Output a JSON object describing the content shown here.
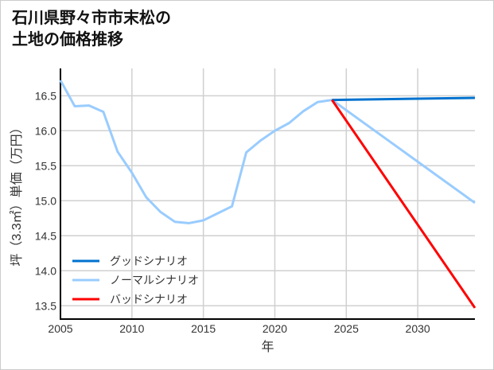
{
  "chart_data": {
    "type": "line",
    "title_lines": [
      "石川県野々市市末松の",
      "土地の価格推移"
    ],
    "xlabel": "年",
    "ylabel": "坪（3.3㎡）単価（万円）",
    "xlim": [
      2005,
      2034
    ],
    "ylim": [
      13.31,
      16.89
    ],
    "xticks": [
      2005,
      2010,
      2015,
      2020,
      2025,
      2030
    ],
    "yticks": [
      13.5,
      14.0,
      14.5,
      15.0,
      15.5,
      16.0,
      16.5
    ],
    "ytick_labels": [
      "13.5",
      "14.0",
      "14.5",
      "15.0",
      "15.5",
      "16.0",
      "16.5"
    ],
    "grid": true,
    "legend_position": "bottom-left",
    "series": [
      {
        "name": "グッドシナリオ",
        "color": "#0072cf",
        "x": [
          2024,
          2034
        ],
        "y": [
          16.44,
          16.47
        ]
      },
      {
        "name": "ノーマルシナリオ",
        "color": "#99ccff",
        "x": [
          2005,
          2006,
          2007,
          2008,
          2009,
          2010,
          2011,
          2012,
          2013,
          2014,
          2015,
          2016,
          2017,
          2018,
          2019,
          2020,
          2021,
          2022,
          2023,
          2024,
          2034
        ],
        "y": [
          16.72,
          16.35,
          16.36,
          16.27,
          15.7,
          15.4,
          15.05,
          14.84,
          14.7,
          14.68,
          14.72,
          14.82,
          14.92,
          15.69,
          15.86,
          16.0,
          16.11,
          16.28,
          16.41,
          16.44,
          14.97
        ]
      },
      {
        "name": "バッドシナリオ",
        "color": "#ff0000",
        "x": [
          2024,
          2034
        ],
        "y": [
          16.44,
          13.47
        ]
      }
    ]
  }
}
